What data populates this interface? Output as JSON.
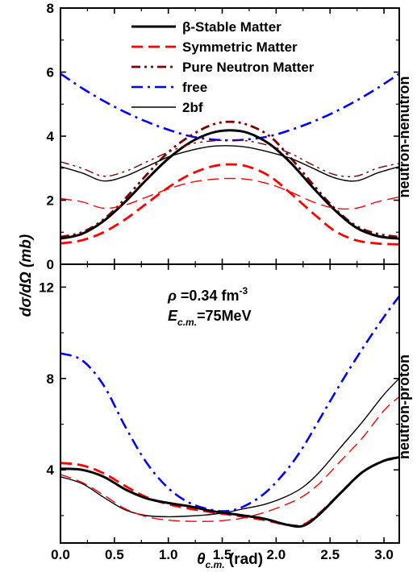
{
  "chart_data": {
    "type": "line",
    "xlabel_main": "θ",
    "xlabel_sub": "c.m.",
    "xlabel_unit": " (rad)",
    "ylabel": "dσ/dΩ (mb)",
    "xlim": [
      0,
      3.1416
    ],
    "xticks": [
      "0.0",
      "0.5",
      "1.0",
      "1.5",
      "2.0",
      "2.5",
      "3.0"
    ],
    "xtick_values": [
      0,
      0.5,
      1.0,
      1.5,
      2.0,
      2.5,
      3.0
    ],
    "colors": {
      "beta": "#000000",
      "sym": "#ff0000",
      "pnm": "#7b0000",
      "free": "#0000ff",
      "twobf": "#000000"
    },
    "legend": {
      "position": "top-center",
      "entries": [
        {
          "key": "beta",
          "label": "β-Stable Matter"
        },
        {
          "key": "sym",
          "label": "Symmetric Matter"
        },
        {
          "key": "pnm",
          "label": "Pure Neutron Matter"
        },
        {
          "key": "free",
          "label": "free"
        },
        {
          "key": "twobf",
          "label": "2bf"
        }
      ]
    },
    "panels": [
      {
        "name": "neutron-nenutron",
        "ylim": [
          0,
          8
        ],
        "yticks": [
          "0",
          "2",
          "4",
          "6",
          "8"
        ],
        "ytick_values": [
          0,
          2,
          4,
          6,
          8
        ],
        "x": [
          0,
          0.2,
          0.4,
          0.6,
          0.8,
          1.0,
          1.2,
          1.4,
          1.5708,
          1.74,
          1.94,
          2.14,
          2.34,
          2.54,
          2.74,
          2.94,
          3.1416
        ],
        "series": [
          {
            "key": "free",
            "style": "dashdot",
            "width": 2.6,
            "values": [
              5.95,
              5.5,
              5.1,
              4.75,
              4.45,
              4.2,
              4.0,
              3.9,
              3.87,
              3.9,
              4.0,
              4.2,
              4.45,
              4.75,
              5.1,
              5.5,
              5.95
            ]
          },
          {
            "key": "pnm",
            "style": "dashdotdot",
            "width": 2.8,
            "values": [
              0.85,
              1.0,
              1.4,
              2.05,
              2.8,
              3.5,
              4.0,
              4.35,
              4.45,
              4.35,
              4.0,
              3.3,
              2.5,
              1.75,
              1.2,
              0.95,
              0.85
            ]
          },
          {
            "key": "sym",
            "style": "dash",
            "width": 2.8,
            "values": [
              0.65,
              0.75,
              1.0,
              1.4,
              1.9,
              2.4,
              2.8,
              3.05,
              3.12,
              3.05,
              2.75,
              2.2,
              1.6,
              1.05,
              0.75,
              0.65,
              0.62
            ]
          },
          {
            "key": "beta",
            "style": "solid",
            "width": 3.0,
            "values": [
              0.8,
              0.95,
              1.35,
              1.95,
              2.65,
              3.3,
              3.8,
              4.1,
              4.18,
              4.1,
              3.75,
              3.15,
              2.4,
              1.7,
              1.15,
              0.88,
              0.8
            ]
          },
          {
            "key": "pnm",
            "style": "dashdotdot",
            "width": 1.4,
            "values": [
              3.2,
              3.0,
              2.75,
              2.9,
              3.2,
              3.5,
              3.75,
              3.85,
              3.88,
              3.85,
              3.7,
              3.45,
              3.1,
              2.8,
              2.75,
              3.0,
              3.15
            ]
          },
          {
            "key": "twobf",
            "style": "solid",
            "width": 1.4,
            "values": [
              3.05,
              2.85,
              2.6,
              2.75,
              3.05,
              3.35,
              3.55,
              3.68,
              3.7,
              3.65,
              3.5,
              3.3,
              3.0,
              2.7,
              2.6,
              2.85,
              3.05
            ]
          },
          {
            "key": "sym",
            "style": "dash",
            "width": 1.4,
            "values": [
              2.05,
              1.95,
              1.75,
              1.85,
              2.1,
              2.35,
              2.55,
              2.65,
              2.68,
              2.65,
              2.5,
              2.25,
              1.95,
              1.75,
              1.75,
              1.95,
              2.1
            ]
          }
        ]
      },
      {
        "name": "neutron-proton",
        "ylim": [
          0.8,
          13.0
        ],
        "yticks": [
          "4",
          "8",
          "12"
        ],
        "ytick_values": [
          4,
          8,
          12
        ],
        "annotation_line1_sym": "ρ",
        "annotation_line1_text": " =0.34 fm",
        "annotation_line1_sup": "-3",
        "annotation_line2_main": "E",
        "annotation_line2_sub": "c.m.",
        "annotation_line2_text": "=75MeV",
        "x": [
          0,
          0.2,
          0.4,
          0.6,
          0.8,
          1.0,
          1.2,
          1.4,
          1.55,
          1.7,
          1.9,
          2.1,
          2.25,
          2.4,
          2.6,
          2.8,
          3.0,
          3.1416
        ],
        "series": [
          {
            "key": "free",
            "style": "dashdot",
            "width": 2.6,
            "values": [
              9.1,
              8.8,
              7.7,
              5.9,
              4.3,
              3.2,
              2.55,
              2.25,
              2.2,
              2.4,
              3.0,
              4.0,
              5.0,
              6.2,
              7.8,
              9.3,
              10.7,
              11.6
            ]
          },
          {
            "key": "twobf",
            "style": "solid",
            "width": 1.4,
            "values": [
              3.7,
              3.4,
              2.8,
              2.25,
              2.0,
              1.95,
              1.98,
              2.05,
              2.15,
              2.3,
              2.5,
              2.85,
              3.25,
              3.9,
              5.0,
              6.1,
              7.3,
              8.0
            ]
          },
          {
            "key": "sym",
            "style": "dash",
            "width": 1.4,
            "values": [
              3.8,
              3.45,
              2.9,
              2.3,
              1.95,
              1.8,
              1.75,
              1.75,
              1.8,
              1.9,
              2.15,
              2.5,
              2.85,
              3.4,
              4.4,
              5.4,
              6.6,
              7.2
            ]
          },
          {
            "key": "sym",
            "style": "dash",
            "width": 2.8,
            "values": [
              4.3,
              4.2,
              3.85,
              3.3,
              2.8,
              2.5,
              2.3,
              2.15,
              2.05,
              1.95,
              1.8,
              1.6,
              1.6,
              2.1,
              3.0,
              3.9,
              4.4,
              4.5
            ]
          },
          {
            "key": "beta",
            "style": "solid",
            "width": 3.0,
            "values": [
              4.05,
              4.0,
              3.7,
              3.15,
              2.75,
              2.55,
              2.4,
              2.2,
              2.1,
              2.0,
              1.85,
              1.6,
              1.55,
              2.05,
              3.0,
              3.9,
              4.4,
              4.55
            ]
          }
        ]
      }
    ]
  }
}
